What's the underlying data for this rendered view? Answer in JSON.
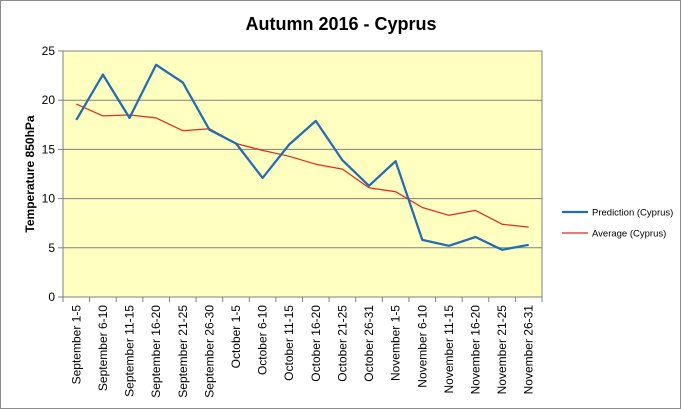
{
  "chart_data": {
    "type": "line",
    "title": "Autumn 2016 - Cyprus",
    "ylabel": "Temperature 850hPa",
    "xlabel": "",
    "ylim": [
      0,
      25
    ],
    "yticks": [
      0,
      5,
      10,
      15,
      20,
      25
    ],
    "grid": true,
    "legend_position": "right",
    "plot_background": "#ffffc0",
    "categories": [
      "September 1-5",
      "September 6-10",
      "September 11-15",
      "September 16-20",
      "September 21-25",
      "September 26-30",
      "October 1-5",
      "October 6-10",
      "October 11-15",
      "October 16-20",
      "October 21-25",
      "October 26-31",
      "November 1-5",
      "November 6-10",
      "November 11-15",
      "November 16-20",
      "November 21-25",
      "November 26-31"
    ],
    "series": [
      {
        "name": "Prediction (Cyprus)",
        "color": "#1f6eb5",
        "values": [
          18.0,
          22.6,
          18.2,
          23.6,
          21.8,
          17.0,
          15.6,
          12.1,
          15.5,
          17.9,
          13.9,
          11.3,
          13.8,
          5.8,
          5.2,
          6.1,
          4.8,
          5.3
        ]
      },
      {
        "name": "Average (Cyprus)",
        "color": "#e8281e",
        "values": [
          19.6,
          18.4,
          18.5,
          18.2,
          16.9,
          17.1,
          15.6,
          14.9,
          14.3,
          13.5,
          13.0,
          11.1,
          10.7,
          9.1,
          8.3,
          8.8,
          7.4,
          7.1
        ]
      }
    ]
  }
}
